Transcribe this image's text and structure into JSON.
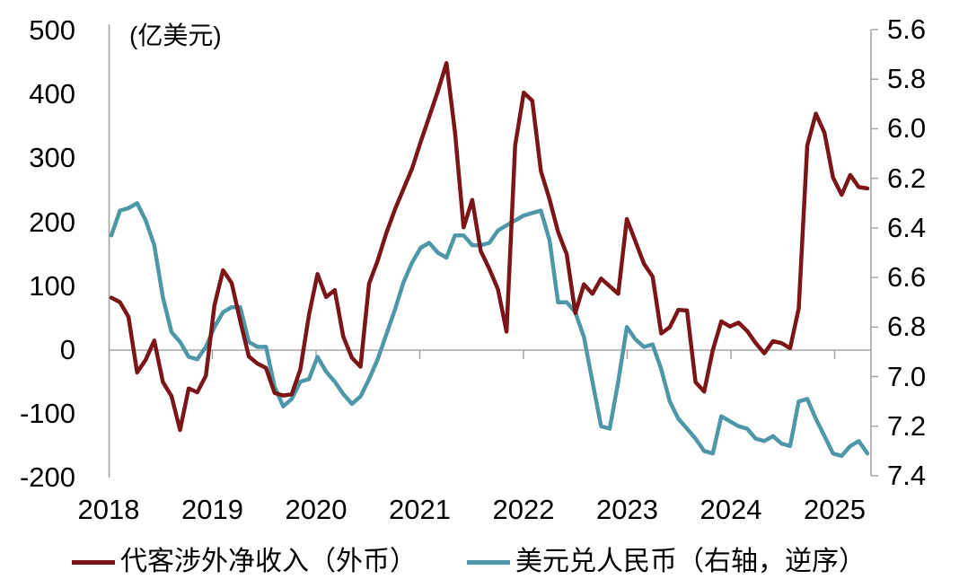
{
  "colors": {
    "net_receipts_line": "#7B1518",
    "usdcny_line": "#4E97A8",
    "axis_gray": "#A6A6A6",
    "text": "#000000",
    "background": "#FFFFFF"
  },
  "chart_data": {
    "type": "line",
    "title": "",
    "unit_note": "(亿美元)",
    "legend_position": "bottom",
    "grid": "zero-line-only",
    "months": [
      "2018-01",
      "2018-02",
      "2018-03",
      "2018-04",
      "2018-05",
      "2018-06",
      "2018-07",
      "2018-08",
      "2018-09",
      "2018-10",
      "2018-11",
      "2018-12",
      "2019-01",
      "2019-02",
      "2019-03",
      "2019-04",
      "2019-05",
      "2019-06",
      "2019-07",
      "2019-08",
      "2019-09",
      "2019-10",
      "2019-11",
      "2019-12",
      "2020-01",
      "2020-02",
      "2020-03",
      "2020-04",
      "2020-05",
      "2020-06",
      "2020-07",
      "2020-08",
      "2020-09",
      "2020-10",
      "2020-11",
      "2020-12",
      "2021-01",
      "2021-02",
      "2021-03",
      "2021-04",
      "2021-05",
      "2021-06",
      "2021-07",
      "2021-08",
      "2021-09",
      "2021-10",
      "2021-11",
      "2021-12",
      "2022-01",
      "2022-02",
      "2022-03",
      "2022-04",
      "2022-05",
      "2022-06",
      "2022-07",
      "2022-08",
      "2022-09",
      "2022-10",
      "2022-11",
      "2022-12",
      "2023-01",
      "2023-02",
      "2023-03",
      "2023-04",
      "2023-05",
      "2023-06",
      "2023-07",
      "2023-08",
      "2023-09",
      "2023-10",
      "2023-11",
      "2023-12",
      "2024-01",
      "2024-02",
      "2024-03",
      "2024-04",
      "2024-05",
      "2024-06",
      "2024-07",
      "2024-08",
      "2024-09",
      "2024-10",
      "2024-11",
      "2024-12",
      "2025-01",
      "2025-02",
      "2025-03",
      "2025-04",
      "2025-05"
    ],
    "series": [
      {
        "name": "代客涉外净收入（外币）",
        "axis": "left",
        "color_key": "net_receipts_line",
        "values": [
          82,
          75,
          52,
          -35,
          -15,
          15,
          -50,
          -72,
          -125,
          -60,
          -66,
          -40,
          70,
          125,
          105,
          46,
          -10,
          -21,
          -28,
          -67,
          -71,
          -69,
          -30,
          55,
          119,
          83,
          94,
          21,
          -12,
          -26,
          104,
          140,
          183,
          220,
          252,
          284,
          326,
          365,
          405,
          449,
          341,
          192,
          235,
          155,
          127,
          95,
          29,
          320,
          403,
          390,
          280,
          236,
          185,
          150,
          58,
          103,
          88,
          112,
          100,
          88,
          205,
          170,
          135,
          115,
          26,
          36,
          63,
          62,
          -50,
          -65,
          0,
          45,
          37,
          43,
          30,
          11,
          -5,
          14,
          11,
          3,
          65,
          320,
          370,
          340,
          270,
          243,
          274,
          255,
          253
        ]
      },
      {
        "name": "美元兑人民币（右轴，逆序）",
        "axis": "right",
        "color_key": "usdcny_line",
        "values": [
          6.43,
          6.33,
          6.32,
          6.3,
          6.37,
          6.47,
          6.68,
          6.82,
          6.86,
          6.92,
          6.93,
          6.88,
          6.8,
          6.74,
          6.72,
          6.72,
          6.86,
          6.88,
          6.88,
          7.04,
          7.12,
          7.09,
          7.02,
          7.01,
          6.92,
          6.98,
          7.02,
          7.07,
          7.11,
          7.08,
          7.01,
          6.93,
          6.83,
          6.73,
          6.62,
          6.54,
          6.48,
          6.46,
          6.5,
          6.52,
          6.43,
          6.43,
          6.47,
          6.47,
          6.46,
          6.41,
          6.39,
          6.37,
          6.35,
          6.34,
          6.33,
          6.45,
          6.7,
          6.7,
          6.74,
          6.84,
          7.02,
          7.2,
          7.21,
          7.02,
          6.8,
          6.85,
          6.88,
          6.87,
          6.97,
          7.1,
          7.17,
          7.21,
          7.25,
          7.3,
          7.31,
          7.16,
          7.18,
          7.2,
          7.21,
          7.25,
          7.26,
          7.24,
          7.27,
          7.28,
          7.1,
          7.09,
          7.17,
          7.24,
          7.31,
          7.32,
          7.28,
          7.26,
          7.31
        ]
      }
    ],
    "left_axis": {
      "label": "(亿美元)",
      "min": -200,
      "max": 500,
      "tick_labels": [
        "500",
        "400",
        "300",
        "200",
        "100",
        "0",
        "-100",
        "-200"
      ]
    },
    "right_axis": {
      "min": 5.6,
      "max": 7.4,
      "inverted": true,
      "tick_labels": [
        "5.6",
        "5.8",
        "6.0",
        "6.2",
        "6.4",
        "6.6",
        "6.8",
        "7.0",
        "7.2",
        "7.4"
      ]
    },
    "x_axis": {
      "year_labels": [
        "2018",
        "2019",
        "2020",
        "2021",
        "2022",
        "2023",
        "2024",
        "2025"
      ]
    }
  }
}
